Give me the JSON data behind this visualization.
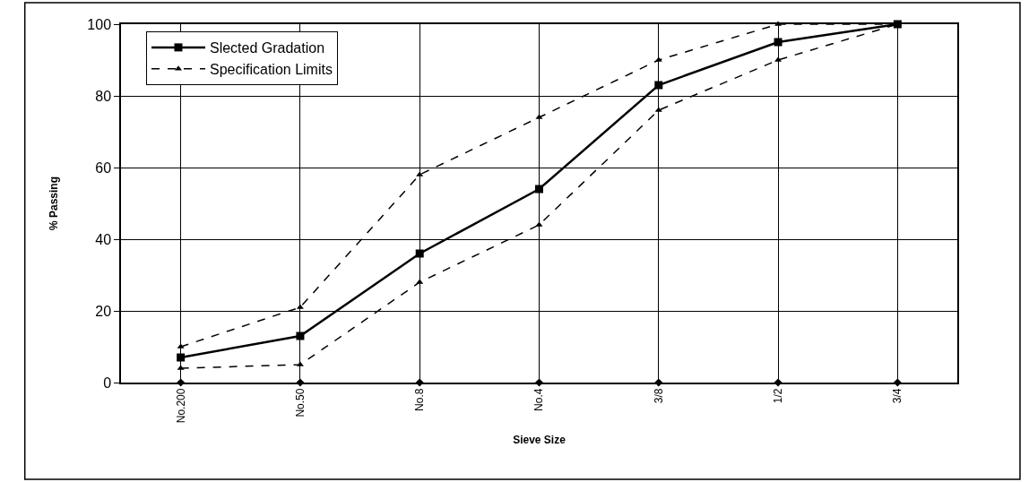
{
  "chart_data": {
    "type": "line",
    "xlabel": "Sieve Size",
    "ylabel": "% Passing",
    "categories": [
      "No.200",
      "No.50",
      "No.8",
      "No.4",
      "3/8",
      "1/2",
      "3/4"
    ],
    "series": [
      {
        "name": "Slected Gradation",
        "color": "#000000",
        "values": [
          7,
          13,
          36,
          54,
          83,
          95,
          100
        ],
        "marker": "square",
        "line_style": "solid"
      },
      {
        "name": "Specification Limits",
        "color": "#000000",
        "values": [
          10,
          21,
          58,
          74,
          90,
          100,
          100
        ],
        "marker": "triangle",
        "line_style": "dashed"
      },
      {
        "color": "#000000",
        "values": [
          4,
          5,
          28,
          44,
          76,
          90,
          100
        ],
        "marker": "triangle",
        "line_style": "dashed"
      },
      {
        "type": "scatter",
        "color": "#000000",
        "values": [
          0,
          0,
          0,
          0,
          0,
          0,
          0
        ],
        "marker": "diamond"
      }
    ],
    "ylim": [
      0,
      100
    ],
    "yticks": [
      0,
      20,
      40,
      60,
      80,
      100
    ],
    "grid": true,
    "legend": "top left"
  }
}
